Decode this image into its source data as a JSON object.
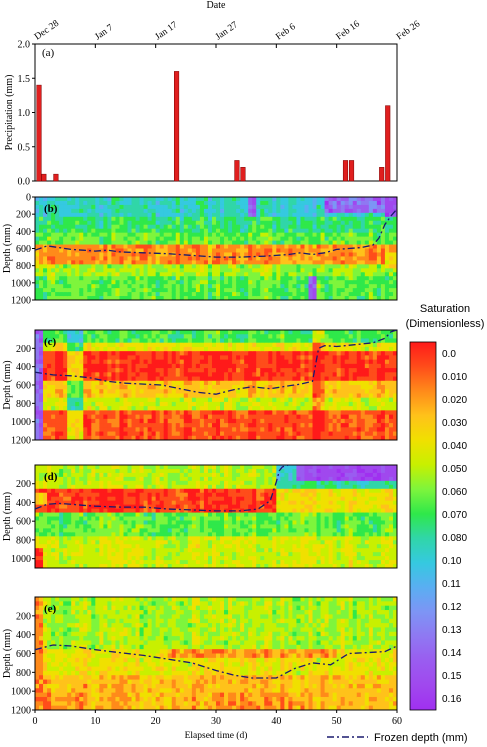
{
  "chart_data": [
    {
      "panel": "(a)",
      "type": "bar",
      "title": "",
      "xlabel": "Date",
      "ylabel": "Precipitation (mm)",
      "x_date_ticks": [
        "Dec 28",
        "Jan 7",
        "Jan 17",
        "Jan 27",
        "Feb 6",
        "Feb 16",
        "Feb 26"
      ],
      "y_ticks": [
        "0.0",
        "0.5",
        "1.0",
        "1.5",
        "2.0"
      ],
      "ylim": [
        0,
        2.0
      ],
      "xlim": [
        0,
        60
      ],
      "x": [
        0.2,
        1.0,
        3.0,
        23.0,
        33.0,
        34.0,
        51.0,
        52.0,
        57.0,
        58.0
      ],
      "values": [
        1.4,
        0.1,
        0.1,
        1.6,
        0.3,
        0.2,
        0.3,
        0.3,
        0.2,
        1.1
      ],
      "bar_color": "#e01f1f"
    },
    {
      "panel": "(b)",
      "type": "heatmap",
      "ylabel": "Depth (mm)",
      "y_ticks": [
        "0",
        "200",
        "400",
        "600",
        "800",
        "1000",
        "1200"
      ],
      "ylim": [
        0,
        1200
      ],
      "xlim": [
        0,
        60
      ],
      "frozen_depth": {
        "x": [
          0,
          2,
          4,
          6,
          8,
          10,
          12,
          14,
          18,
          22,
          26,
          30,
          34,
          38,
          40,
          42,
          44,
          46,
          48,
          50,
          52,
          54,
          56,
          57,
          58,
          59,
          60
        ],
        "y": [
          620,
          570,
          590,
          610,
          620,
          630,
          620,
          640,
          650,
          660,
          680,
          700,
          700,
          690,
          680,
          670,
          650,
          670,
          650,
          610,
          600,
          590,
          560,
          480,
          320,
          220,
          140
        ]
      }
    },
    {
      "panel": "(c)",
      "type": "heatmap",
      "ylabel": "Depth (mm)",
      "y_ticks": [
        "200",
        "400",
        "600",
        "800",
        "1000",
        "1200"
      ],
      "ylim": [
        0,
        1200
      ],
      "xlim": [
        0,
        60
      ],
      "frozen_depth": {
        "x": [
          0,
          3,
          6,
          9,
          12,
          15,
          18,
          21,
          24,
          27,
          30,
          33,
          36,
          39,
          42,
          44,
          46,
          47,
          48,
          50,
          53,
          56,
          58,
          59,
          60
        ],
        "y": [
          460,
          490,
          500,
          520,
          560,
          580,
          590,
          600,
          640,
          680,
          700,
          650,
          620,
          640,
          610,
          590,
          560,
          200,
          170,
          180,
          160,
          140,
          90,
          20,
          0
        ]
      }
    },
    {
      "panel": "(d)",
      "type": "heatmap",
      "ylabel": "Depth (mm)",
      "y_ticks": [
        "200",
        "400",
        "600",
        "800",
        "1000"
      ],
      "ylim": [
        0,
        1100
      ],
      "xlim": [
        0,
        60
      ],
      "frozen_depth": {
        "x": [
          0,
          2,
          4,
          6,
          8,
          10,
          14,
          18,
          22,
          26,
          30,
          34,
          37,
          39,
          40,
          40.5,
          41,
          42
        ],
        "y": [
          470,
          420,
          410,
          420,
          430,
          440,
          450,
          450,
          470,
          480,
          490,
          490,
          470,
          380,
          180,
          60,
          20,
          0
        ]
      }
    },
    {
      "panel": "(e)",
      "type": "heatmap",
      "xlabel": "Elapsed time (d)",
      "ylabel": "Depth (mm)",
      "x_ticks": [
        "0",
        "10",
        "20",
        "30",
        "40",
        "50",
        "60"
      ],
      "y_ticks": [
        "200",
        "400",
        "600",
        "800",
        "1000",
        "1200"
      ],
      "ylim": [
        0,
        1200
      ],
      "xlim": [
        0,
        60
      ],
      "frozen_depth": {
        "x": [
          0,
          3,
          6,
          10,
          14,
          18,
          22,
          26,
          30,
          33,
          36,
          40,
          43,
          46,
          49,
          52,
          55,
          58,
          60
        ],
        "y": [
          560,
          510,
          520,
          560,
          590,
          620,
          660,
          700,
          780,
          830,
          860,
          860,
          760,
          700,
          720,
          600,
          590,
          580,
          520
        ]
      }
    }
  ],
  "colorbar": {
    "title_line1": "Saturation",
    "title_line2": "(Dimensionless)",
    "labels": [
      "0.0",
      "0.010",
      "0.020",
      "0.030",
      "0.040",
      "0.050",
      "0.060",
      "0.070",
      "0.080",
      "0.10",
      "0.11",
      "0.12",
      "0.13",
      "0.14",
      "0.15",
      "0.16"
    ],
    "colors_top_to_bottom": [
      "#ff1a1a",
      "#ff4d1a",
      "#ff8a1a",
      "#ffc21a",
      "#f0e000",
      "#c8f000",
      "#7ef53c",
      "#2fe84a",
      "#30d6a8",
      "#35c9e0",
      "#5aaef2",
      "#7d95f5",
      "#8f78f2",
      "#9a5cf0",
      "#a048ee",
      "#a030f0"
    ]
  },
  "legend": {
    "frozen_depth_label": "Frozen depth (mm)",
    "line_color": "#1a1a6e"
  },
  "axis_labels": {
    "date": "Date",
    "elapsed": "Elapsed time (d)",
    "precip": "Precipitation (mm)",
    "depth": "Depth (mm)"
  },
  "panel_tags": [
    "(a)",
    "(b)",
    "(c)",
    "(d)",
    "(e)"
  ]
}
